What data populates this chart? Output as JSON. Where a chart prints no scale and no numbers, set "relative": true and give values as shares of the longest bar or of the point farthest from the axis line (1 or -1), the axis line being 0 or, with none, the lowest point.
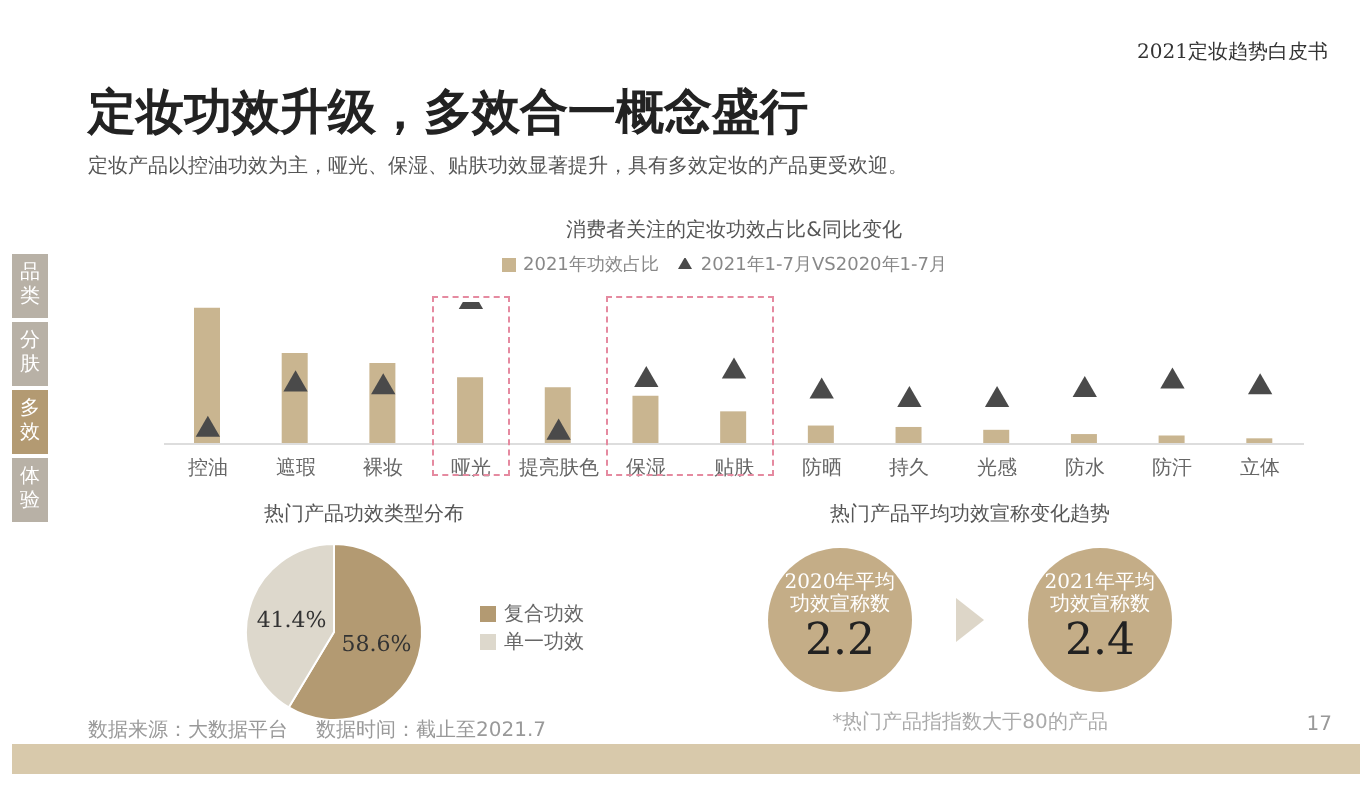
{
  "chart_data": [
    {
      "type": "bar",
      "title": "消费者关注的定妆功效占比&同比变化",
      "relative": true,
      "legend": "top",
      "categories": [
        "控油",
        "遮瑕",
        "裸妆",
        "哑光",
        "提亮肤色",
        "保湿",
        "贴肤",
        "防晒",
        "持久",
        "光感",
        "防水",
        "防汗",
        "立体"
      ],
      "series": [
        {
          "name": "2021年功效占比",
          "color": "#c9b590",
          "values": [
            0.96,
            0.64,
            0.57,
            0.47,
            0.4,
            0.34,
            0.23,
            0.13,
            0.12,
            0.1,
            0.07,
            0.06,
            0.04
          ]
        },
        {
          "name": "2021年1-7月VS2020年1-7月",
          "type": "scatter",
          "marker": "triangle",
          "color": "#4a4a4a",
          "values": [
            0.1,
            0.42,
            0.4,
            1,
            0.08,
            0.45,
            0.51,
            0.37,
            0.31,
            0.31,
            0.38,
            0.44,
            0.4
          ]
        }
      ]
    },
    {
      "type": "pie",
      "title": "热门产品功效类型分布",
      "categories": [
        "复合功效",
        "单一功效"
      ],
      "values": [
        58.6,
        41.4
      ],
      "colors": [
        "#b39a72",
        "#ddd8cc"
      ],
      "value_labels": [
        "58.6%",
        "41.4%"
      ],
      "legend": "right"
    },
    {
      "type": "other",
      "title": "热门产品平均功效宣称变化趋势",
      "categories": [
        "2020年平均功效宣称数",
        "2021年平均功效宣称数"
      ],
      "values": [
        2.2,
        2.4
      ],
      "color": "#c4ad87",
      "data_labels": true,
      "annotations": [
        "*热门产品指指数大于80的产品"
      ]
    },
    {
      "type": "other",
      "title": "定妆功效升级，多效合一概念盛行",
      "subtitle": "定妆产品以控油功效为主，哑光、保湿、贴肤功效显著提升，具有多效定妆的产品更受欢迎。",
      "annotations": [
        "2021定妆趋势白皮书",
        "品类",
        "分肤",
        "多效",
        "体验",
        "数据来源：大数据平台",
        "数据时间：截止至2021.7",
        "17"
      ]
    }
  ]
}
